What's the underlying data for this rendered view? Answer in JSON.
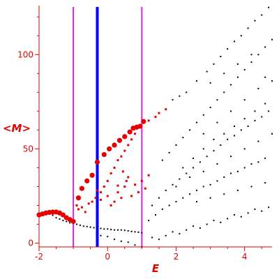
{
  "chart_data": {
    "type": "scatter",
    "xlabel": "E",
    "ylabel": "<M>",
    "xlim": [
      -2,
      4.8
    ],
    "ylim": [
      -2,
      126
    ],
    "x_ticks": [
      -2,
      0,
      2,
      4
    ],
    "y_ticks": [
      0,
      50,
      100
    ],
    "vertical_lines": [
      {
        "x": -1.0,
        "color": "#e020e0"
      },
      {
        "x": -0.3,
        "color": "#0000ff"
      },
      {
        "x": 1.0,
        "color": "#e020e0"
      }
    ],
    "colors": {
      "axis": "#e00000",
      "ticks": "#e00000",
      "black_points": "#000000",
      "red_points": "#e80000"
    },
    "red_large_points": [
      [
        -2.0,
        15.0
      ],
      [
        -1.9,
        15.5
      ],
      [
        -1.8,
        16.0
      ],
      [
        -1.7,
        16.3
      ],
      [
        -1.6,
        16.5
      ],
      [
        -1.5,
        16.5
      ],
      [
        -1.4,
        16.0
      ],
      [
        -1.3,
        15.0
      ],
      [
        -1.2,
        13.5
      ],
      [
        -1.1,
        12.5
      ],
      [
        -1.0,
        11.5
      ],
      [
        -0.85,
        24.0
      ],
      [
        -0.75,
        29.0
      ],
      [
        -0.6,
        33.0
      ],
      [
        -0.45,
        36.0
      ],
      [
        -0.3,
        43.0
      ],
      [
        -0.1,
        47.0
      ],
      [
        0.05,
        50.0
      ],
      [
        0.2,
        52.0
      ],
      [
        0.35,
        54.5
      ],
      [
        0.5,
        56.5
      ],
      [
        0.65,
        59.0
      ],
      [
        0.75,
        61.0
      ],
      [
        0.85,
        61.5
      ],
      [
        0.95,
        62.0
      ],
      [
        1.05,
        64.5
      ]
    ],
    "red_small_points": [
      [
        -0.9,
        20.0
      ],
      [
        -0.85,
        18.0
      ],
      [
        -0.75,
        19.0
      ],
      [
        -0.65,
        16.5
      ],
      [
        -0.55,
        21.0
      ],
      [
        -0.45,
        22.0
      ],
      [
        -0.35,
        24.0
      ],
      [
        -0.2,
        27.0
      ],
      [
        -0.1,
        30.0
      ],
      [
        0.0,
        33.0
      ],
      [
        0.1,
        37.0
      ],
      [
        0.2,
        40.0
      ],
      [
        0.3,
        44.0
      ],
      [
        0.4,
        46.0
      ],
      [
        0.5,
        49.0
      ],
      [
        0.6,
        52.0
      ],
      [
        0.7,
        55.0
      ],
      [
        0.8,
        58.0
      ],
      [
        1.2,
        65.0
      ],
      [
        1.4,
        67.0
      ],
      [
        1.5,
        69.0
      ],
      [
        1.7,
        71.0
      ],
      [
        -0.3,
        28.0
      ],
      [
        -0.2,
        23.0
      ],
      [
        0.0,
        25.0
      ],
      [
        0.1,
        20.0
      ],
      [
        0.2,
        22.0
      ],
      [
        0.3,
        27.0
      ],
      [
        0.4,
        24.0
      ],
      [
        0.5,
        30.0
      ],
      [
        0.6,
        35.0
      ],
      [
        0.7,
        25.0
      ],
      [
        0.8,
        31.0
      ],
      [
        0.9,
        27.0
      ],
      [
        1.0,
        33.0
      ],
      [
        1.1,
        29.0
      ],
      [
        1.2,
        36.0
      ],
      [
        0.3,
        30.5
      ],
      [
        0.45,
        38.0
      ],
      [
        0.55,
        33.0
      ]
    ],
    "black_points": [
      [
        -2.0,
        15.0
      ],
      [
        -1.8,
        15.2
      ],
      [
        -1.6,
        14.8
      ],
      [
        -1.5,
        13.5
      ],
      [
        -1.4,
        12.8
      ],
      [
        -1.3,
        12.0
      ],
      [
        -1.2,
        11.5
      ],
      [
        -1.1,
        10.8
      ],
      [
        -1.0,
        10.5
      ],
      [
        -0.9,
        10.0
      ],
      [
        -0.8,
        9.5
      ],
      [
        -0.7,
        9.0
      ],
      [
        -0.6,
        8.8
      ],
      [
        -0.5,
        8.5
      ],
      [
        -0.4,
        8.2
      ],
      [
        -0.3,
        8.0
      ],
      [
        -0.2,
        7.8
      ],
      [
        -0.1,
        7.5
      ],
      [
        0.0,
        7.5
      ],
      [
        0.1,
        7.2
      ],
      [
        0.2,
        7.0
      ],
      [
        0.3,
        7.0
      ],
      [
        0.4,
        7.0
      ],
      [
        0.5,
        6.8
      ],
      [
        0.6,
        6.5
      ],
      [
        0.7,
        6.2
      ],
      [
        0.8,
        6.0
      ],
      [
        0.9,
        5.8
      ],
      [
        1.0,
        5.5
      ],
      [
        -0.2,
        4.0
      ],
      [
        0.0,
        3.5
      ],
      [
        0.2,
        2.0
      ],
      [
        0.4,
        1.0
      ],
      [
        0.6,
        0.5
      ],
      [
        0.8,
        -1.0
      ],
      [
        1.0,
        -2.0
      ],
      [
        1.3,
        3.0
      ],
      [
        1.5,
        2.0
      ],
      [
        1.7,
        4.0
      ],
      [
        1.9,
        6.0
      ],
      [
        2.1,
        5.0
      ],
      [
        2.3,
        7.0
      ],
      [
        2.5,
        9.0
      ],
      [
        2.7,
        8.0
      ],
      [
        2.9,
        10.0
      ],
      [
        3.1,
        12.0
      ],
      [
        3.3,
        11.0
      ],
      [
        3.5,
        13.0
      ],
      [
        3.7,
        15.0
      ],
      [
        3.9,
        14.0
      ],
      [
        4.1,
        16.0
      ],
      [
        4.3,
        18.0
      ],
      [
        4.5,
        17.0
      ],
      [
        4.7,
        19.0
      ],
      [
        1.2,
        12.0
      ],
      [
        1.4,
        15.0
      ],
      [
        1.6,
        18.0
      ],
      [
        1.8,
        20.0
      ],
      [
        2.0,
        22.0
      ],
      [
        2.2,
        24.0
      ],
      [
        2.4,
        26.0
      ],
      [
        2.6,
        28.0
      ],
      [
        2.8,
        30.0
      ],
      [
        3.0,
        31.0
      ],
      [
        3.2,
        33.0
      ],
      [
        3.4,
        35.0
      ],
      [
        3.6,
        37.0
      ],
      [
        3.8,
        38.0
      ],
      [
        4.0,
        40.0
      ],
      [
        4.2,
        42.0
      ],
      [
        4.4,
        43.0
      ],
      [
        4.6,
        45.0
      ],
      [
        1.3,
        20.0
      ],
      [
        1.5,
        24.0
      ],
      [
        1.7,
        28.0
      ],
      [
        1.9,
        31.0
      ],
      [
        2.1,
        34.0
      ],
      [
        2.3,
        37.0
      ],
      [
        2.5,
        40.0
      ],
      [
        2.7,
        43.0
      ],
      [
        2.9,
        46.0
      ],
      [
        3.1,
        49.0
      ],
      [
        3.3,
        52.0
      ],
      [
        3.5,
        55.0
      ],
      [
        3.7,
        57.0
      ],
      [
        3.9,
        60.0
      ],
      [
        4.1,
        62.0
      ],
      [
        4.3,
        65.0
      ],
      [
        4.5,
        67.0
      ],
      [
        4.7,
        70.0
      ],
      [
        1.6,
        44.0
      ],
      [
        1.8,
        48.0
      ],
      [
        2.0,
        52.0
      ],
      [
        2.2,
        56.0
      ],
      [
        2.4,
        60.0
      ],
      [
        2.6,
        64.0
      ],
      [
        2.8,
        68.0
      ],
      [
        3.0,
        72.0
      ],
      [
        3.2,
        76.0
      ],
      [
        3.4,
        80.0
      ],
      [
        3.6,
        84.0
      ],
      [
        3.8,
        88.0
      ],
      [
        4.0,
        92.0
      ],
      [
        4.2,
        96.0
      ],
      [
        4.4,
        100.0
      ],
      [
        4.6,
        104.0
      ],
      [
        4.8,
        108.0
      ],
      [
        1.9,
        76.0
      ],
      [
        2.1,
        78.0
      ],
      [
        2.3,
        80.0
      ],
      [
        2.6,
        86.0
      ],
      [
        2.9,
        91.0
      ],
      [
        3.1,
        95.0
      ],
      [
        3.3,
        99.0
      ],
      [
        3.5,
        103.0
      ],
      [
        3.7,
        107.0
      ],
      [
        3.9,
        110.0
      ],
      [
        4.1,
        114.0
      ],
      [
        4.3,
        118.0
      ],
      [
        4.5,
        121.0
      ],
      [
        4.7,
        125.0
      ],
      [
        2.2,
        40.0
      ],
      [
        2.5,
        45.0
      ],
      [
        2.8,
        50.0
      ],
      [
        3.1,
        55.0
      ],
      [
        3.4,
        58.0
      ],
      [
        3.7,
        62.0
      ],
      [
        4.0,
        66.0
      ],
      [
        4.3,
        70.0
      ],
      [
        4.6,
        74.0
      ],
      [
        2.0,
        30.0
      ],
      [
        2.4,
        35.0
      ],
      [
        2.8,
        38.0
      ],
      [
        3.2,
        42.0
      ],
      [
        3.6,
        46.0
      ],
      [
        4.0,
        50.0
      ],
      [
        4.4,
        54.0
      ],
      [
        4.8,
        58.0
      ],
      [
        2.6,
        22.0
      ],
      [
        3.0,
        24.0
      ],
      [
        3.4,
        26.0
      ],
      [
        3.8,
        28.0
      ],
      [
        4.2,
        30.0
      ],
      [
        4.6,
        32.0
      ],
      [
        3.0,
        85.0
      ],
      [
        3.4,
        90.0
      ],
      [
        3.8,
        95.0
      ],
      [
        4.2,
        100.0
      ],
      [
        4.6,
        88.0
      ],
      [
        3.6,
        70.0
      ],
      [
        4.0,
        76.0
      ],
      [
        4.4,
        82.0
      ],
      [
        4.8,
        86.0
      ],
      [
        3.2,
        64.0
      ],
      [
        2.8,
        58.0
      ]
    ]
  }
}
